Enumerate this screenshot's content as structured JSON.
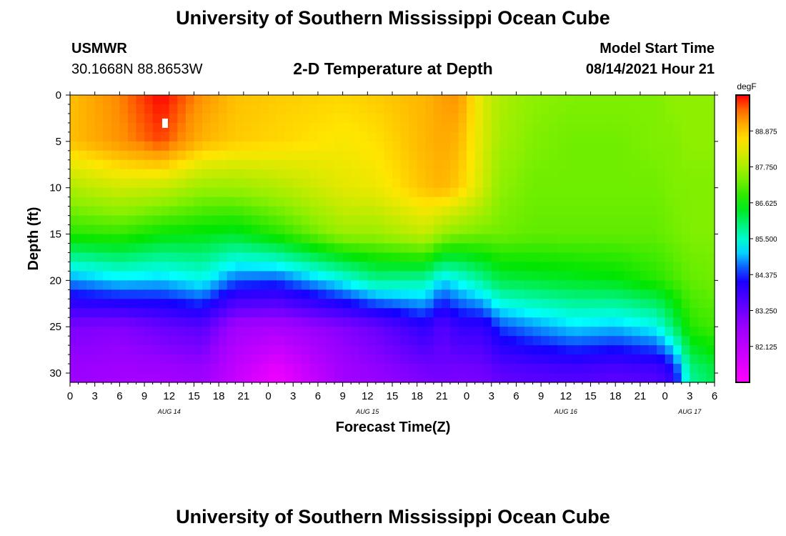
{
  "page": {
    "title_top": "University of Southern Mississippi Ocean Cube",
    "title_bottom": "University of Southern Mississippi Ocean Cube",
    "station": "USMWR",
    "coords": "30.1668N  88.8653W",
    "plot_title": "2-D Temperature at Depth",
    "model_label": "Model Start Time",
    "model_time": "08/14/2021 Hour 21"
  },
  "chart_data": {
    "type": "heatmap",
    "title": "2-D Temperature at Depth",
    "xlabel": "Forecast Time(Z)",
    "ylabel": "Depth (ft)",
    "x_unit": "hours from 08/14 00Z",
    "xlim": [
      0,
      78
    ],
    "ylim": [
      0,
      31
    ],
    "x_ticks": [
      0,
      3,
      6,
      9,
      12,
      15,
      18,
      21,
      24,
      27,
      30,
      33,
      36,
      39,
      42,
      45,
      48,
      51,
      54,
      57,
      60,
      63,
      66,
      69,
      72,
      75,
      78
    ],
    "x_tick_labels": [
      "0",
      "3",
      "6",
      "9",
      "12",
      "15",
      "18",
      "21",
      "0",
      "3",
      "6",
      "9",
      "12",
      "15",
      "18",
      "21",
      "0",
      "3",
      "6",
      "9",
      "12",
      "15",
      "18",
      "21",
      "0",
      "3",
      "6"
    ],
    "y_ticks": [
      0,
      5,
      10,
      15,
      20,
      25,
      30
    ],
    "y_tick_labels": [
      "0",
      "5",
      "10",
      "15",
      "20",
      "25",
      "30"
    ],
    "date_labels": [
      {
        "x": 12,
        "text": "AUG 14"
      },
      {
        "x": 36,
        "text": "AUG 15"
      },
      {
        "x": 60,
        "text": "AUG 16"
      },
      {
        "x": 75,
        "text": "AUG 17"
      }
    ],
    "colorbar": {
      "unit": "degF",
      "min": 81.0,
      "max": 90.0,
      "ticks": [
        82.125,
        83.25,
        84.375,
        85.5,
        86.625,
        87.75,
        88.875
      ],
      "tick_labels": [
        "82.125",
        "83.250",
        "84.375",
        "85.500",
        "86.625",
        "87.750",
        "88.875"
      ]
    },
    "max_marker": {
      "x": 11.5,
      "depth": 3
    },
    "profile_hours": [
      0,
      6,
      11,
      16,
      20,
      25,
      33,
      37,
      43,
      45,
      47,
      50,
      52,
      56,
      61,
      66,
      71,
      73,
      75,
      78
    ],
    "profile_depths": [
      0,
      5,
      10,
      15,
      20,
      25,
      30
    ],
    "temperature_degF": [
      [
        88.9,
        88.9,
        87.8,
        86.8,
        84.8,
        83.1,
        82.7
      ],
      [
        89.4,
        89.3,
        88.1,
        86.9,
        85.1,
        83.0,
        82.6
      ],
      [
        90.0,
        89.7,
        88.0,
        86.6,
        85.0,
        83.3,
        82.6
      ],
      [
        89.3,
        89.0,
        87.6,
        86.5,
        85.3,
        83.5,
        82.7
      ],
      [
        88.9,
        88.8,
        87.6,
        86.4,
        84.6,
        82.6,
        82.0
      ],
      [
        88.8,
        88.7,
        87.8,
        86.8,
        84.5,
        82.5,
        81.3
      ],
      [
        88.7,
        88.5,
        88.3,
        87.6,
        85.3,
        83.0,
        82.6
      ],
      [
        88.8,
        88.6,
        88.4,
        87.6,
        85.8,
        83.3,
        82.8
      ],
      [
        89.0,
        89.0,
        88.9,
        88.0,
        85.7,
        84.0,
        83.1
      ],
      [
        89.2,
        89.1,
        89.0,
        87.6,
        85.1,
        83.5,
        83.2
      ],
      [
        89.3,
        89.0,
        88.8,
        87.4,
        85.3,
        83.9,
        83.1
      ],
      [
        88.2,
        88.2,
        88.1,
        87.3,
        85.8,
        83.9,
        83.2
      ],
      [
        87.8,
        87.7,
        87.5,
        87.3,
        86.2,
        84.5,
        83.4
      ],
      [
        87.5,
        87.4,
        87.3,
        87.2,
        86.3,
        84.8,
        83.5
      ],
      [
        87.4,
        87.3,
        87.3,
        87.2,
        86.4,
        85.1,
        83.6
      ],
      [
        87.4,
        87.3,
        87.3,
        87.2,
        86.5,
        85.0,
        83.5
      ],
      [
        87.4,
        87.4,
        87.3,
        87.2,
        86.8,
        85.3,
        83.6
      ],
      [
        87.5,
        87.4,
        87.4,
        87.3,
        87.0,
        86.0,
        84.0
      ],
      [
        87.5,
        87.5,
        87.4,
        87.4,
        87.2,
        86.8,
        85.8
      ],
      [
        87.5,
        87.5,
        87.4,
        87.4,
        87.3,
        87.0,
        86.2
      ]
    ]
  }
}
